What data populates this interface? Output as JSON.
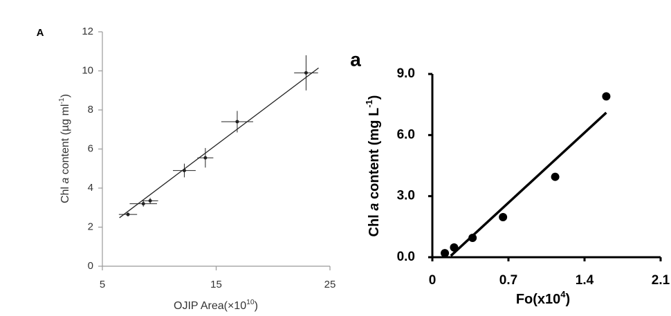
{
  "chart_data": [
    {
      "type": "scatter",
      "panel_label": "A",
      "ylabel_parts": [
        "Chl ",
        "a",
        " content (µg ml",
        "-1",
        ")"
      ],
      "xlabel_parts": [
        "OJIP Area(×10",
        "10",
        ")"
      ],
      "xlim": [
        5,
        25
      ],
      "xticks": [
        5,
        15,
        25
      ],
      "ylim": [
        0,
        12
      ],
      "yticks": [
        0,
        2,
        4,
        6,
        8,
        10,
        12
      ],
      "series": [
        {
          "kind": "points",
          "color": "#222222",
          "x": [
            7.25,
            8.6,
            9.2,
            12.2,
            14.05,
            16.85,
            22.9
          ],
          "values": [
            2.65,
            3.2,
            3.35,
            4.9,
            5.55,
            7.4,
            9.9
          ],
          "x_err": [
            0.8,
            1.2,
            0.7,
            1.0,
            0.7,
            1.4,
            1.05
          ],
          "y_err": [
            0.1,
            0.15,
            0.15,
            0.35,
            0.5,
            0.55,
            0.9
          ]
        },
        {
          "kind": "line",
          "color": "#222222",
          "x": [
            6.5,
            24
          ],
          "values": [
            2.48,
            10.15
          ]
        }
      ]
    },
    {
      "type": "scatter",
      "panel_label": "a",
      "ylabel_parts": [
        "Chl ",
        "a",
        " content (mg L",
        "-1",
        ")"
      ],
      "xlabel_parts": [
        "Fo(x10",
        "4",
        ")"
      ],
      "xlim": [
        0,
        2.1
      ],
      "xticks": [
        0,
        0.7,
        1.4,
        2.1
      ],
      "ylim": [
        0,
        9
      ],
      "yticks": [
        {
          "value": 0,
          "label": "0.0"
        },
        {
          "value": 3,
          "label": "3.0"
        },
        {
          "value": 6,
          "label": "6.0"
        },
        {
          "value": 9,
          "label": "9.0"
        }
      ],
      "series": [
        {
          "kind": "points",
          "color": "#000000",
          "x": [
            0.115,
            0.2,
            0.37,
            0.65,
            1.13,
            1.6
          ],
          "values": [
            0.2,
            0.48,
            0.95,
            1.97,
            3.95,
            7.9
          ]
        },
        {
          "kind": "line",
          "color": "#000000",
          "x": [
            0.17,
            1.6
          ],
          "values": [
            0.07,
            7.1
          ]
        }
      ]
    }
  ]
}
